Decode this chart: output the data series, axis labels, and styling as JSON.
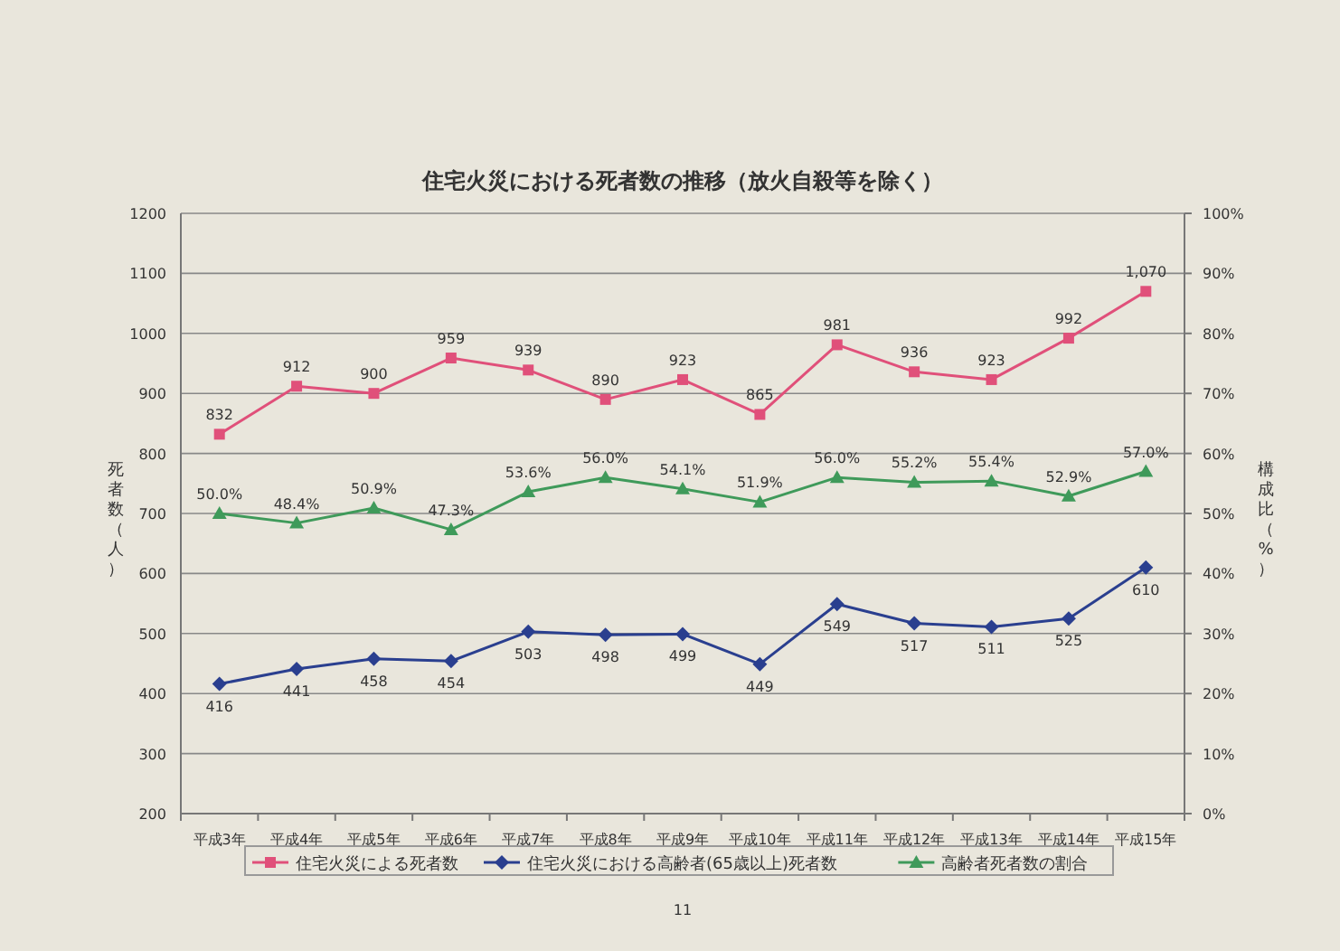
{
  "chart_data": {
    "type": "line",
    "title": "住宅火災における死者数の推移（放火自殺等を除く）",
    "ylabel": "死者数（人）",
    "y2label": "構成比（%）",
    "categories": [
      "平成3年",
      "平成4年",
      "平成5年",
      "平成6年",
      "平成7年",
      "平成8年",
      "平成9年",
      "平成10年",
      "平成11年",
      "平成12年",
      "平成13年",
      "平成14年",
      "平成15年"
    ],
    "series": [
      {
        "name": "住宅火災による死者数",
        "color": "#e0507a",
        "marker": "square",
        "values": [
          832,
          912,
          900,
          959,
          939,
          890,
          923,
          865,
          981,
          936,
          923,
          992,
          1070
        ],
        "value_labels": [
          "832",
          "912",
          "900",
          "959",
          "939",
          "890",
          "923",
          "865",
          "981",
          "936",
          "923",
          "992",
          "1,070"
        ]
      },
      {
        "name": "住宅火災における高齢者(65歳以上)死者数",
        "color": "#2a3f8f",
        "marker": "diamond",
        "values": [
          416,
          441,
          458,
          454,
          503,
          498,
          499,
          449,
          549,
          517,
          511,
          525,
          610
        ],
        "value_labels": [
          "416",
          "441",
          "458",
          "454",
          "503",
          "498",
          "499",
          "449",
          "549",
          "517",
          "511",
          "525",
          "610"
        ]
      },
      {
        "name": "高齢者死者数の割合",
        "color": "#3f9a5a",
        "marker": "triangle",
        "axis": "y2",
        "values": [
          50.0,
          48.4,
          50.9,
          47.3,
          53.6,
          56.0,
          54.1,
          51.9,
          56.0,
          55.2,
          55.4,
          52.9,
          57.0
        ],
        "value_labels": [
          "50.0%",
          "48.4%",
          "50.9%",
          "47.3%",
          "53.6%",
          "56.0%",
          "54.1%",
          "51.9%",
          "56.0%",
          "55.2%",
          "55.4%",
          "52.9%",
          "57.0%"
        ]
      }
    ],
    "ylim": [
      200,
      1200
    ],
    "yticks": [
      200,
      300,
      400,
      500,
      600,
      700,
      800,
      900,
      1000,
      1100,
      1200
    ],
    "y2lim": [
      0,
      100
    ],
    "y2ticks": [
      {
        "value": 0,
        "label": "0%"
      },
      {
        "value": 10,
        "label": "10%"
      },
      {
        "value": 20,
        "label": "20%"
      },
      {
        "value": 30,
        "label": "30%"
      },
      {
        "value": 40,
        "label": "40%"
      },
      {
        "value": 50,
        "label": "50%"
      },
      {
        "value": 60,
        "label": "60%"
      },
      {
        "value": 70,
        "label": "70%"
      },
      {
        "value": 80,
        "label": "80%"
      },
      {
        "value": 90,
        "label": "90%"
      },
      {
        "value": 100,
        "label": "100%"
      }
    ],
    "grid": "y",
    "legend": "bottom",
    "annotations": [
      "11"
    ]
  }
}
